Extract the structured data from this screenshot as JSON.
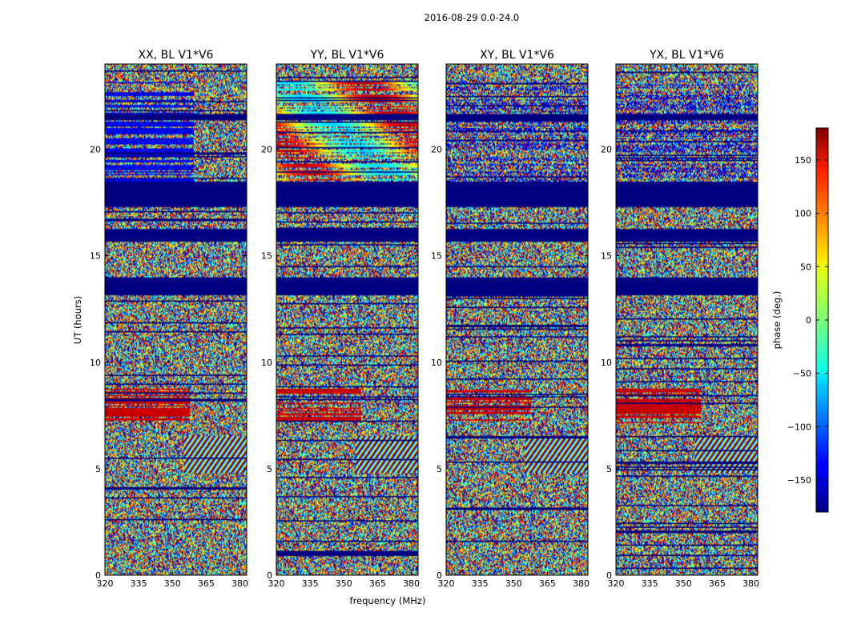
{
  "chart_data": {
    "type": "heatmap",
    "title": "2016-08-29 0.0-24.0",
    "xlabel": "frequency (MHz)",
    "ylabel": "UT (hours)",
    "xlim": [
      320,
      383
    ],
    "ylim": [
      0,
      24
    ],
    "x_ticks": [
      320,
      335,
      350,
      365,
      380
    ],
    "y_ticks": [
      0,
      5,
      10,
      15,
      20
    ],
    "colormap": "jet",
    "colorbar": {
      "label": "phase (deg.)",
      "range": [
        -180,
        180
      ],
      "ticks": [
        150,
        100,
        50,
        0,
        -50,
        -100,
        -150
      ],
      "tick_labels": [
        "150",
        "100",
        "50",
        "0",
        "−50",
        "−100",
        "−150"
      ]
    },
    "panels": [
      {
        "title": "XX, BL V1*V6"
      },
      {
        "title": "YY, BL V1*V6"
      },
      {
        "title": "XY, BL V1*V6"
      },
      {
        "title": "YX, BL V1*V6"
      }
    ],
    "flagged_bands_hours": [
      [
        13.2,
        14.0
      ],
      [
        15.7,
        16.3
      ],
      [
        17.3,
        18.5
      ],
      [
        21.4,
        21.7
      ]
    ]
  }
}
